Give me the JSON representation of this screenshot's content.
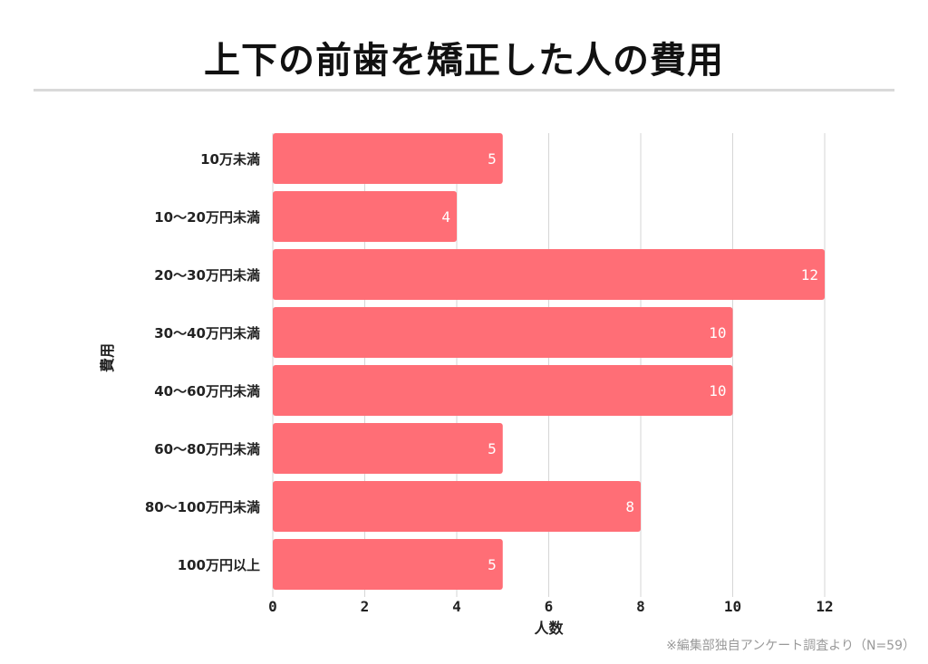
{
  "chart_data": {
    "type": "bar",
    "orientation": "horizontal",
    "title": "上下の前歯を矯正した人の費用",
    "xlabel": "人数",
    "ylabel": "費用",
    "categories": [
      "10万未満",
      "10〜20万円未満",
      "20〜30万円未満",
      "30〜40万円未満",
      "40〜60万円未満",
      "60〜80万円未満",
      "80〜100万円未満",
      "100万円以上"
    ],
    "values": [
      5,
      4,
      12,
      10,
      10,
      5,
      8,
      5
    ],
    "xlim": [
      0,
      12
    ],
    "xticks": [
      0,
      2,
      4,
      6,
      8,
      10,
      12
    ],
    "grid": true,
    "color": "#ff6e76"
  },
  "footnote": "※編集部独自アンケート調査より（N=59）"
}
